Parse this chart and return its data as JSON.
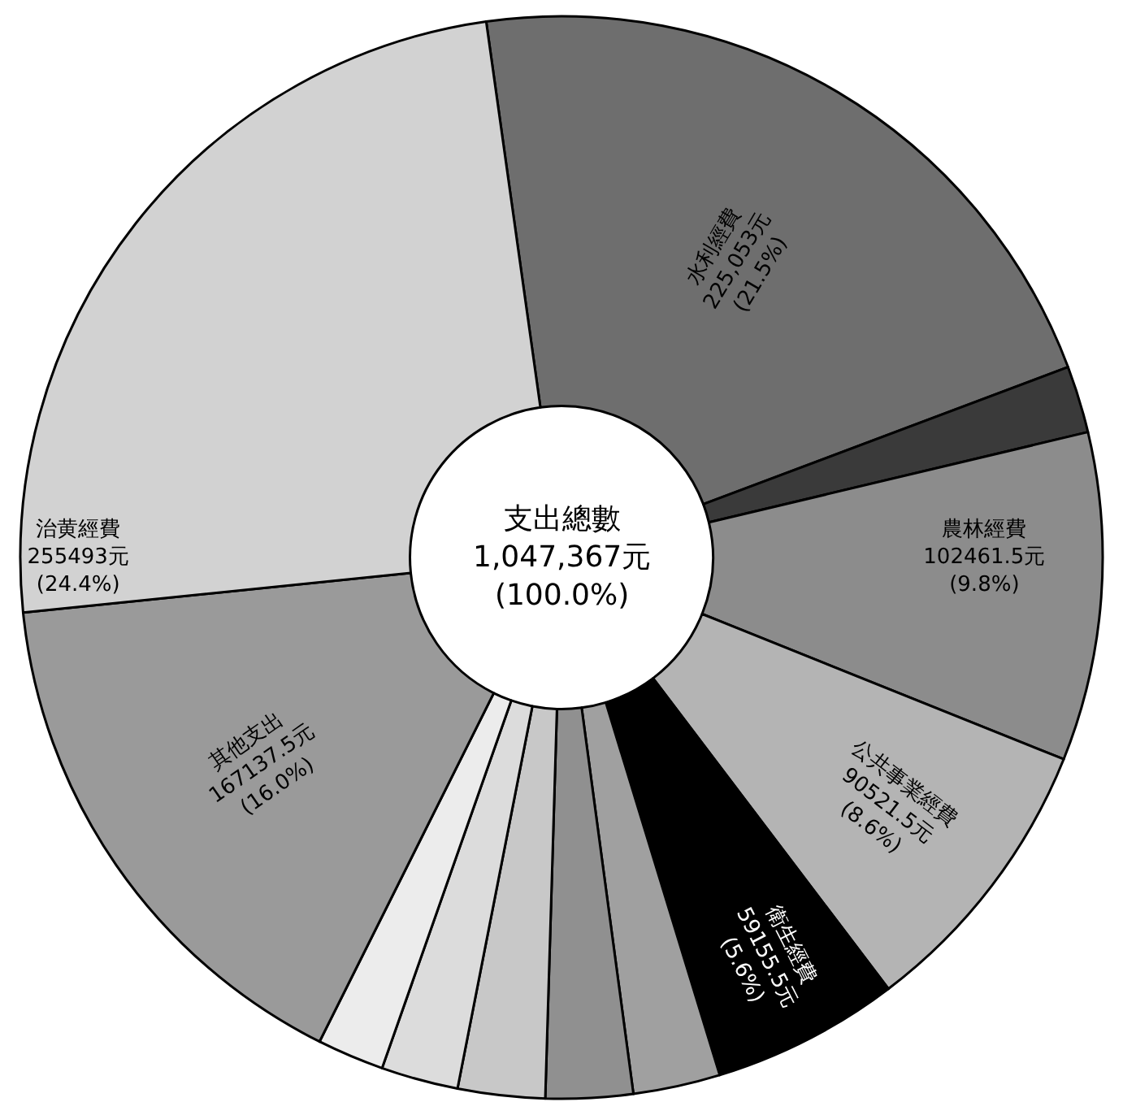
{
  "chart_data": {
    "type": "donut",
    "legend": false,
    "categories": [
      "水利經費",
      null,
      "農林經費",
      "公共事業經費",
      "衛生經費",
      null,
      null,
      null,
      null,
      null,
      "其他支出",
      "治黄經費"
    ],
    "values": [
      21.5,
      2.0,
      9.8,
      8.6,
      5.6,
      2.6,
      2.6,
      2.6,
      2.3,
      2.0,
      16.0,
      24.4
    ],
    "value_labels": [
      "225,053元 (21.5%)",
      null,
      "102461.5元 (9.8%)",
      "90521.5元 (8.6%)",
      "59155.5元 (5.6%)",
      null,
      null,
      null,
      null,
      null,
      "167137.5元 (16.0%)",
      "255493元 (24.4%)"
    ],
    "colors": [
      "#6e6e6e",
      "#3a3a3a",
      "#8c8c8c",
      "#b4b4b4",
      "#000000",
      "#a0a0a0",
      "#909090",
      "#c8c8c8",
      "#dcdcdc",
      "#ececec",
      "#9a9a9a",
      "#d2d2d2"
    ],
    "annotations": [
      "支出總數\n1,047,367元\n(100.0%)"
    ]
  }
}
